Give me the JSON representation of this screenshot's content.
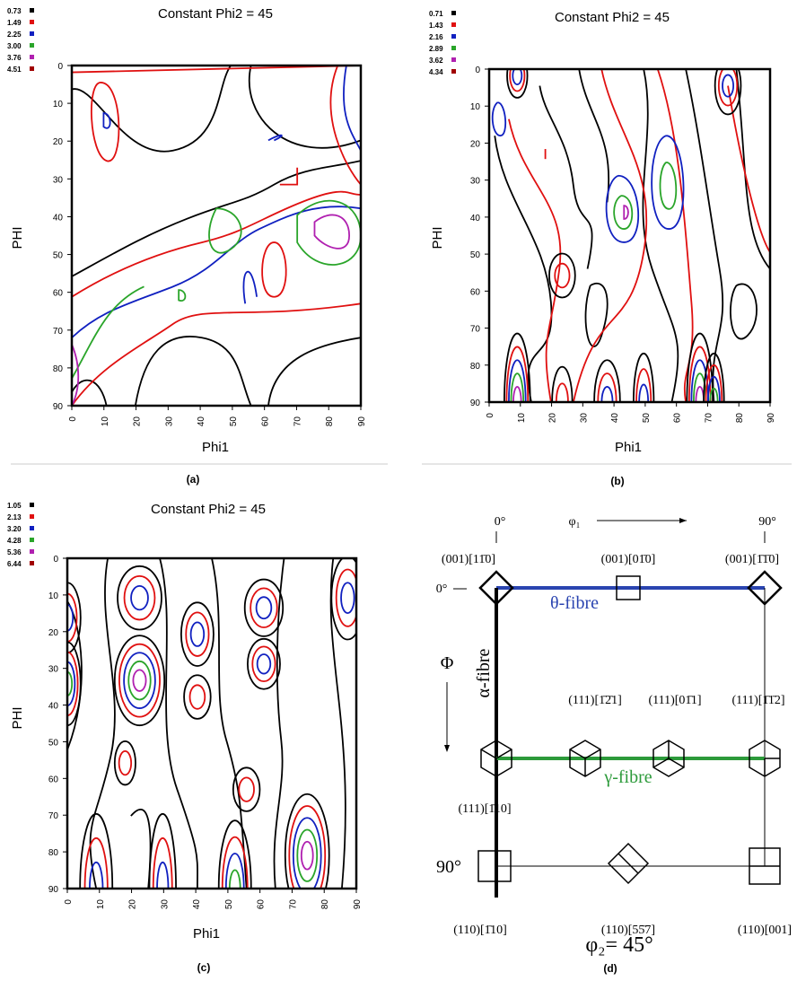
{
  "figures": [
    {
      "title": "Constant Phi2 = 45",
      "legend": [
        "0.73",
        "1.49",
        "2.25",
        "3.00",
        "3.76",
        "4.51"
      ],
      "y_label": "PHI",
      "x_label": "Phi1",
      "yticks": [
        "0",
        "10",
        "20",
        "30",
        "40",
        "50",
        "60",
        "70",
        "80",
        "90"
      ],
      "xticks": [
        "0",
        "10",
        "20",
        "30",
        "40",
        "50",
        "60",
        "70",
        "80",
        "90"
      ],
      "caption": "(a)"
    },
    {
      "title": "Constant Phi2 = 45",
      "legend": [
        "0.71",
        "1.43",
        "2.16",
        "2.89",
        "3.62",
        "4.34"
      ],
      "y_label": "PHI",
      "x_label": "Phi1",
      "yticks": [
        "0",
        "10",
        "20",
        "30",
        "40",
        "50",
        "60",
        "70",
        "80",
        "90"
      ],
      "xticks": [
        "0",
        "10",
        "20",
        "30",
        "40",
        "50",
        "60",
        "70",
        "80",
        "90"
      ],
      "caption": "(b)"
    },
    {
      "title": "Constant Phi2 = 45",
      "legend": [
        "1.05",
        "2.13",
        "3.20",
        "4.28",
        "5.36",
        "6.44"
      ],
      "y_label": "PHI",
      "x_label": "Phi1",
      "yticks": [
        "0",
        "10",
        "20",
        "30",
        "40",
        "50",
        "60",
        "70",
        "80",
        "90"
      ],
      "xticks": [
        "0",
        "10",
        "20",
        "30",
        "40",
        "50",
        "60",
        "70",
        "80",
        "90"
      ],
      "caption": "(c)"
    }
  ],
  "diagram": {
    "phi1_start": "0°",
    "phi1_label": "φ₁",
    "phi1_end": "90°",
    "phi_start": "0°",
    "phi_label": "Φ",
    "phi_end": "90°",
    "theta_fibre": "θ-fibre",
    "alpha_fibre": "α-fibre",
    "gamma_fibre": "γ-fibre",
    "orientations": [
      "(001)[11̄0]",
      "(001)[01̄0]",
      "(001)[1̄1̄0]",
      "(111)[1̄2̄1]",
      "(111)[01̄1]",
      "(111)[1̄1̄2]",
      "(111)[1̄10]",
      "(110)[1̄10]",
      "(110)[55̄7]",
      "(110)[001]"
    ],
    "phi2": "φ₂= 45°",
    "caption": "(d)"
  }
}
